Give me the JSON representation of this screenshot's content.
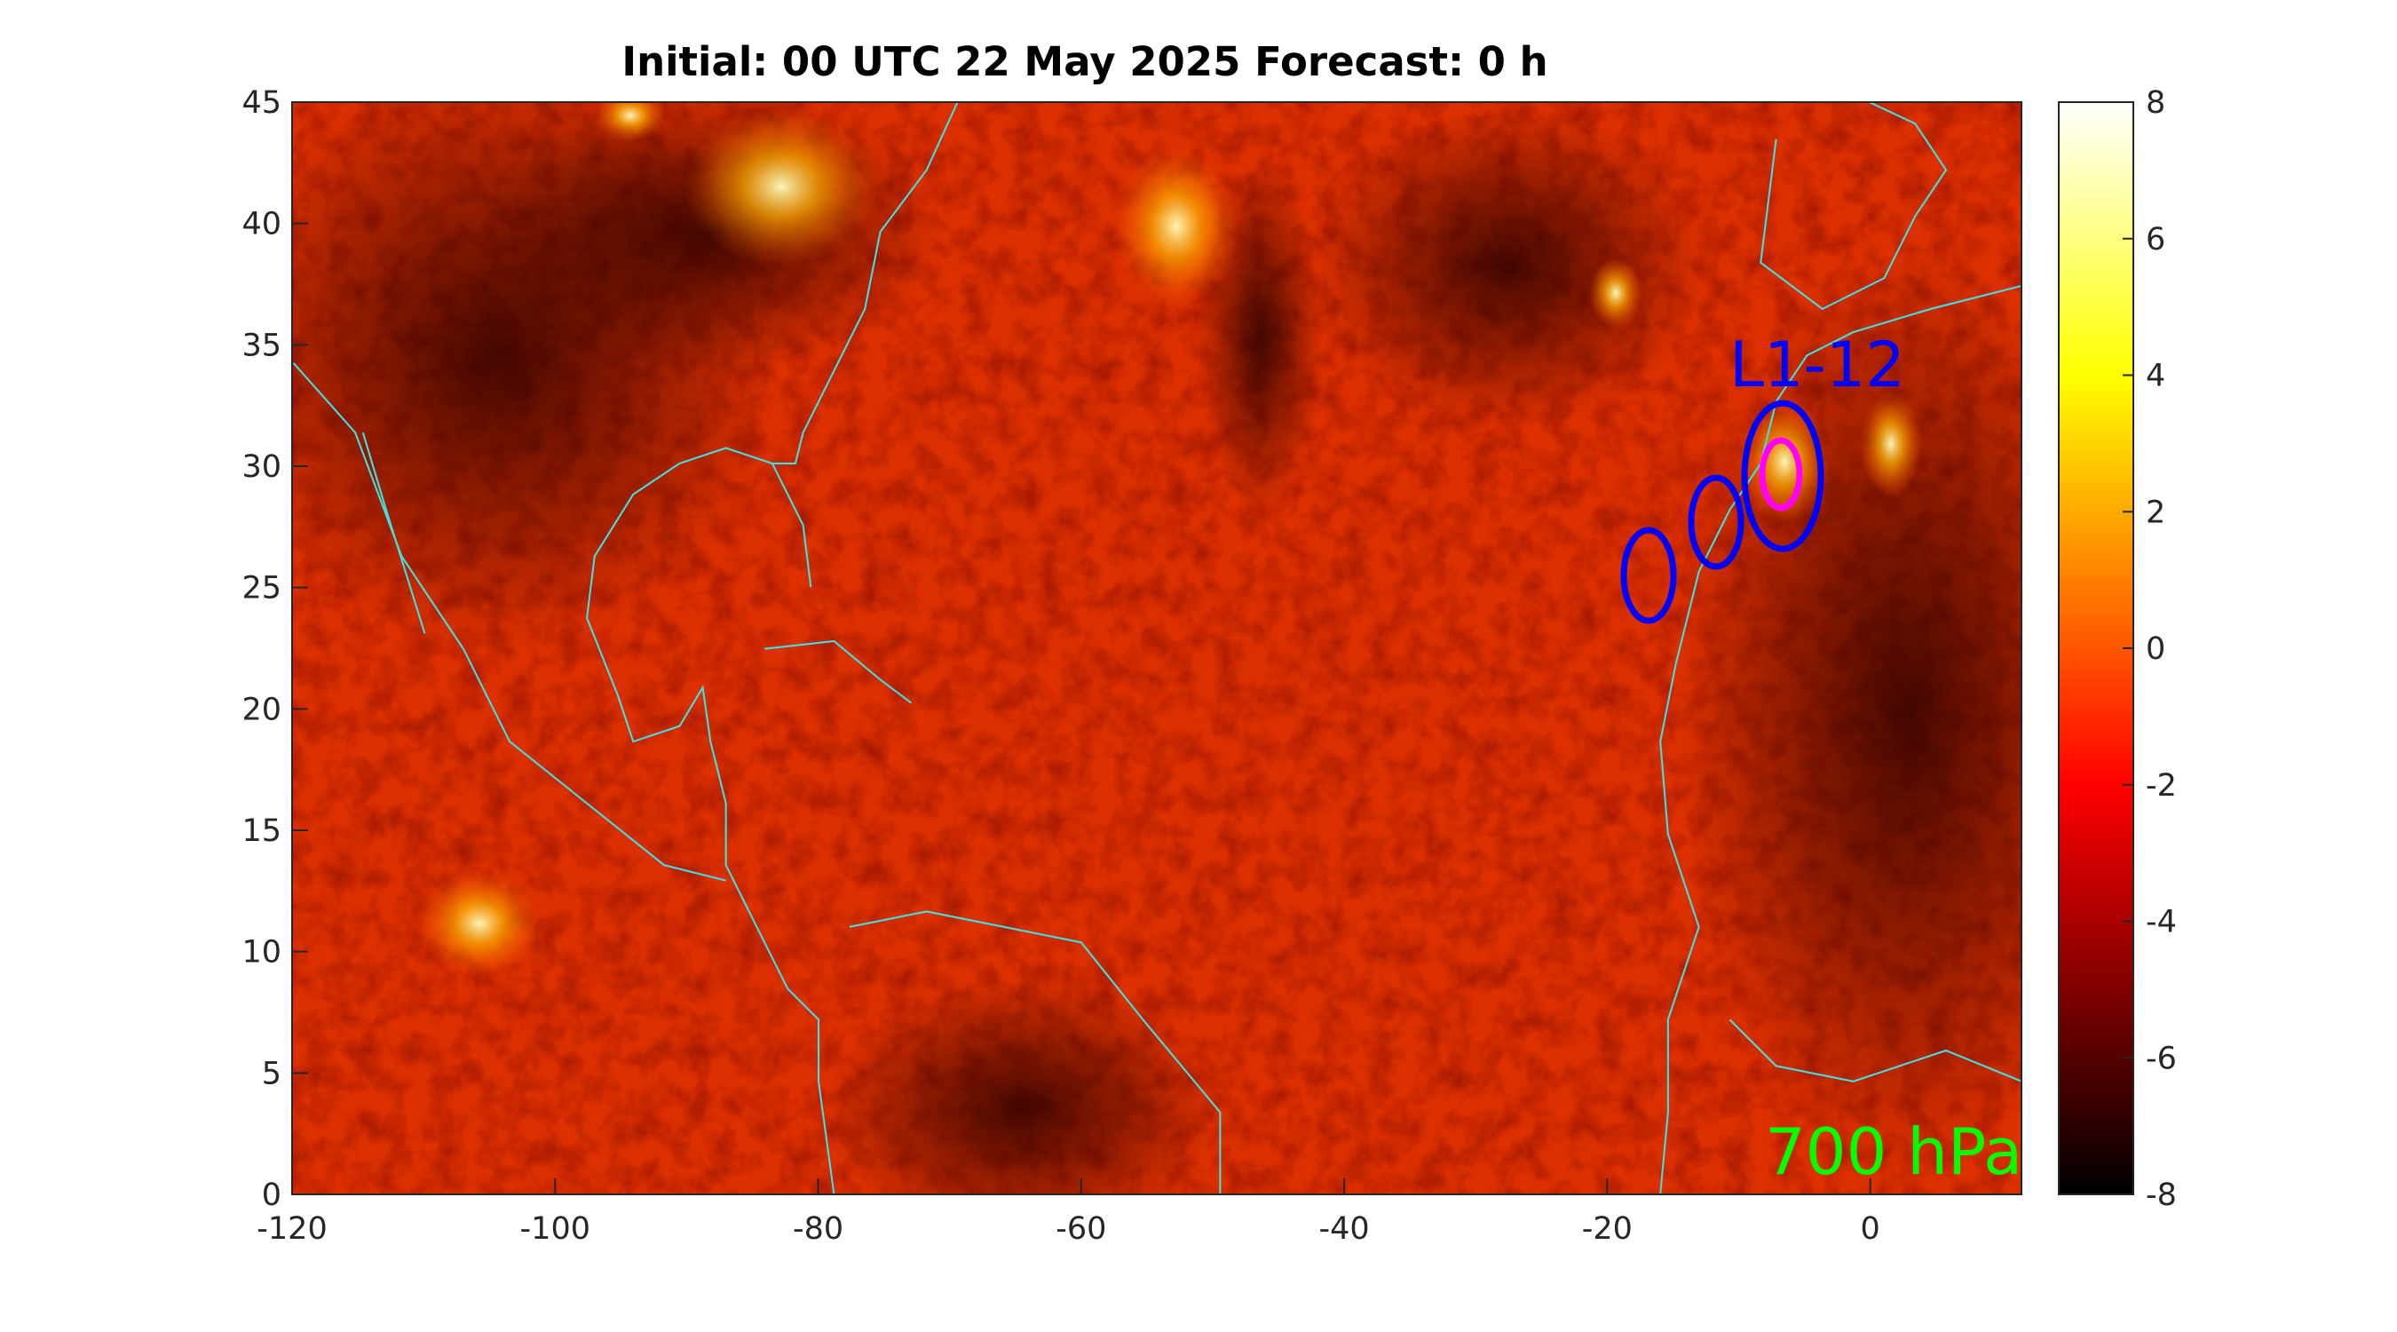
{
  "chart_data": {
    "type": "heatmap",
    "title": "Initial: 00 UTC 22 May 2025 Forecast: 0 h",
    "xlim": [
      -120,
      11.5
    ],
    "ylim": [
      0,
      45
    ],
    "xticks": [
      -120,
      -100,
      -80,
      -60,
      -40,
      -20,
      0
    ],
    "yticks": [
      0,
      5,
      10,
      15,
      20,
      25,
      30,
      35,
      40,
      45
    ],
    "colorbar": {
      "clim": [
        -8,
        8
      ],
      "ticks": [
        -8,
        -6,
        -4,
        -2,
        0,
        2,
        4,
        6,
        8
      ]
    },
    "annotations": [
      "L1-12",
      "700 hPa"
    ]
  }
}
